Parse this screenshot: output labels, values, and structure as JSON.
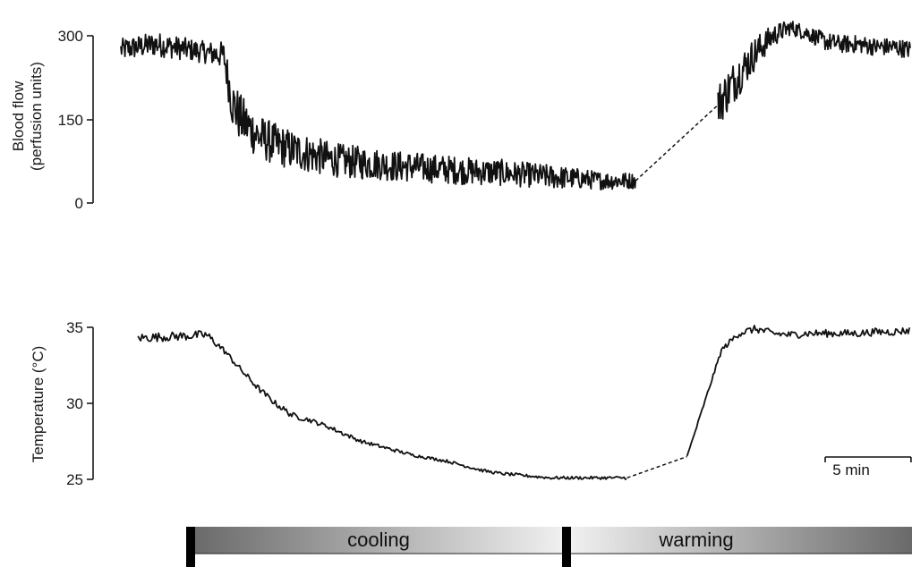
{
  "chart_data": [
    {
      "type": "line",
      "ylabel_line1": "Blood flow",
      "ylabel_line2": "(perfusion units)",
      "ylim": [
        0,
        300
      ],
      "yticks": [
        "300",
        "150",
        "0"
      ],
      "series": [
        {
          "x": [
            0,
            2,
            4,
            5,
            6,
            6.5,
            7,
            8,
            9,
            10,
            11,
            12,
            13,
            14,
            15,
            16,
            17,
            18,
            19,
            20,
            21,
            22,
            23,
            24,
            25,
            26,
            27,
            28,
            29,
            30,
            31,
            32,
            33,
            34,
            35,
            36,
            37,
            38,
            39,
            40,
            41,
            42,
            43,
            44,
            45,
            46
          ],
          "y": [
            275,
            285,
            275,
            270,
            265,
            180,
            150,
            120,
            105,
            95,
            88,
            80,
            75,
            72,
            70,
            66,
            65,
            62,
            60,
            58,
            56,
            55,
            52,
            50,
            47,
            45,
            43,
            40,
            40,
            40,
            60,
            85,
            110,
            140,
            185,
            230,
            270,
            300,
            315,
            305,
            290,
            285,
            285,
            280,
            280,
            275
          ],
          "noise": [
            20,
            22,
            20,
            20,
            25,
            45,
            45,
            40,
            38,
            36,
            34,
            32,
            30,
            30,
            28,
            28,
            27,
            26,
            26,
            25,
            24,
            24,
            23,
            22,
            22,
            20,
            18,
            16,
            16,
            14,
            20,
            30,
            35,
            38,
            40,
            38,
            30,
            20,
            14,
            14,
            16,
            16,
            16,
            16,
            16,
            16
          ],
          "gap": [
            30,
            34.8
          ]
        }
      ]
    },
    {
      "type": "line",
      "ylabel": "Temperature (°C)",
      "ylim": [
        25,
        35
      ],
      "yticks": [
        "35",
        "30",
        "25"
      ],
      "series": [
        {
          "x": [
            1,
            3,
            5,
            6,
            7,
            8,
            9,
            10,
            11,
            12,
            13,
            14,
            15,
            16,
            17,
            18,
            19,
            20,
            21,
            22,
            23,
            24,
            25,
            26,
            27,
            28,
            29,
            30,
            31,
            32,
            33,
            34,
            35,
            36,
            37,
            38,
            39,
            40,
            41,
            42,
            43,
            44,
            45,
            46
          ],
          "y": [
            34.3,
            34.4,
            34.5,
            33.5,
            32.2,
            31.0,
            30.0,
            29.2,
            28.9,
            28.5,
            28.0,
            27.5,
            27.2,
            26.9,
            26.6,
            26.4,
            26.2,
            25.9,
            25.6,
            25.4,
            25.3,
            25.2,
            25.1,
            25.1,
            25.1,
            25.1,
            25.1,
            25.1,
            25.1,
            25.4,
            26.5,
            30.0,
            33.5,
            34.6,
            34.9,
            34.6,
            34.5,
            34.6,
            34.6,
            34.6,
            34.6,
            34.7,
            34.7,
            34.8
          ],
          "noise": [
            0.3,
            0.3,
            0.3,
            0.2,
            0.2,
            0.2,
            0.2,
            0.2,
            0.15,
            0.15,
            0.15,
            0.12,
            0.12,
            0.12,
            0.1,
            0.1,
            0.1,
            0.1,
            0.1,
            0.1,
            0.1,
            0.1,
            0.1,
            0.1,
            0.1,
            0.1,
            0.1,
            0.1,
            0.1,
            0.1,
            0.1,
            0.1,
            0.15,
            0.25,
            0.25,
            0.25,
            0.25,
            0.25,
            0.25,
            0.25,
            0.25,
            0.25,
            0.25,
            0.25
          ],
          "gap": [
            29.5,
            33
          ]
        }
      ]
    }
  ],
  "scale_bar": {
    "label": "5 min",
    "minutes": 5
  },
  "time_axis": {
    "start": 0,
    "end": 46
  },
  "phases": {
    "cooling": "cooling",
    "warming": "warming"
  },
  "colors": {
    "trace": "#111111",
    "dark": "#6a6a6a",
    "light": "#f0f0f0",
    "marker": "#000000"
  }
}
